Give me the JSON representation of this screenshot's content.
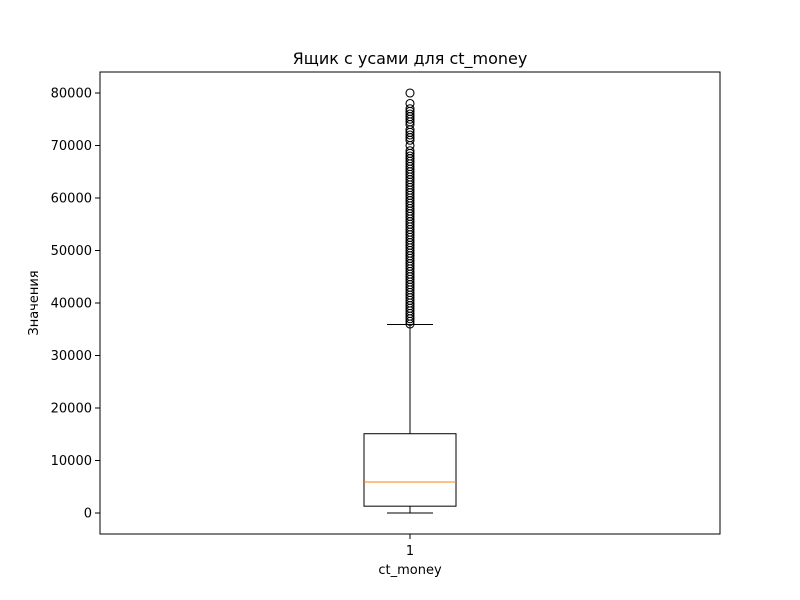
{
  "chart_data": {
    "type": "boxplot",
    "title": "Ящик с усами для ct_money",
    "xlabel": "ct_money",
    "ylabel": "Значения",
    "categories": [
      "1"
    ],
    "ylim": [
      -4000,
      84000
    ],
    "yticks": [
      0,
      10000,
      20000,
      30000,
      40000,
      50000,
      60000,
      70000,
      80000
    ],
    "yticklabels": [
      "0",
      "10000",
      "20000",
      "30000",
      "40000",
      "50000",
      "60000",
      "70000",
      "80000"
    ],
    "box": {
      "whisker_low": 0,
      "q1": 1300,
      "median": 5900,
      "q3": 15100,
      "whisker_high": 35900
    },
    "outliers": [
      36000,
      36500,
      37000,
      37500,
      38000,
      38500,
      39000,
      39500,
      40000,
      40500,
      41000,
      41500,
      42000,
      42500,
      43000,
      43500,
      44000,
      44500,
      45000,
      45500,
      46000,
      46500,
      47000,
      47500,
      48000,
      48500,
      49000,
      49500,
      50000,
      50500,
      51000,
      51500,
      52000,
      52500,
      53000,
      53500,
      54000,
      54500,
      55000,
      55500,
      56000,
      56500,
      57000,
      57500,
      58000,
      58500,
      59000,
      59500,
      60000,
      60500,
      61000,
      61500,
      62000,
      62500,
      63000,
      63500,
      64000,
      64500,
      65000,
      65500,
      66000,
      66500,
      67000,
      67500,
      68000,
      68500,
      69000,
      70000,
      71000,
      71500,
      72000,
      72500,
      73000,
      74000,
      74500,
      75000,
      75500,
      76000,
      76500,
      77000,
      78000,
      80000
    ],
    "colors": {
      "median": "#ff7f0e",
      "box": "#000000"
    },
    "grid": false
  }
}
